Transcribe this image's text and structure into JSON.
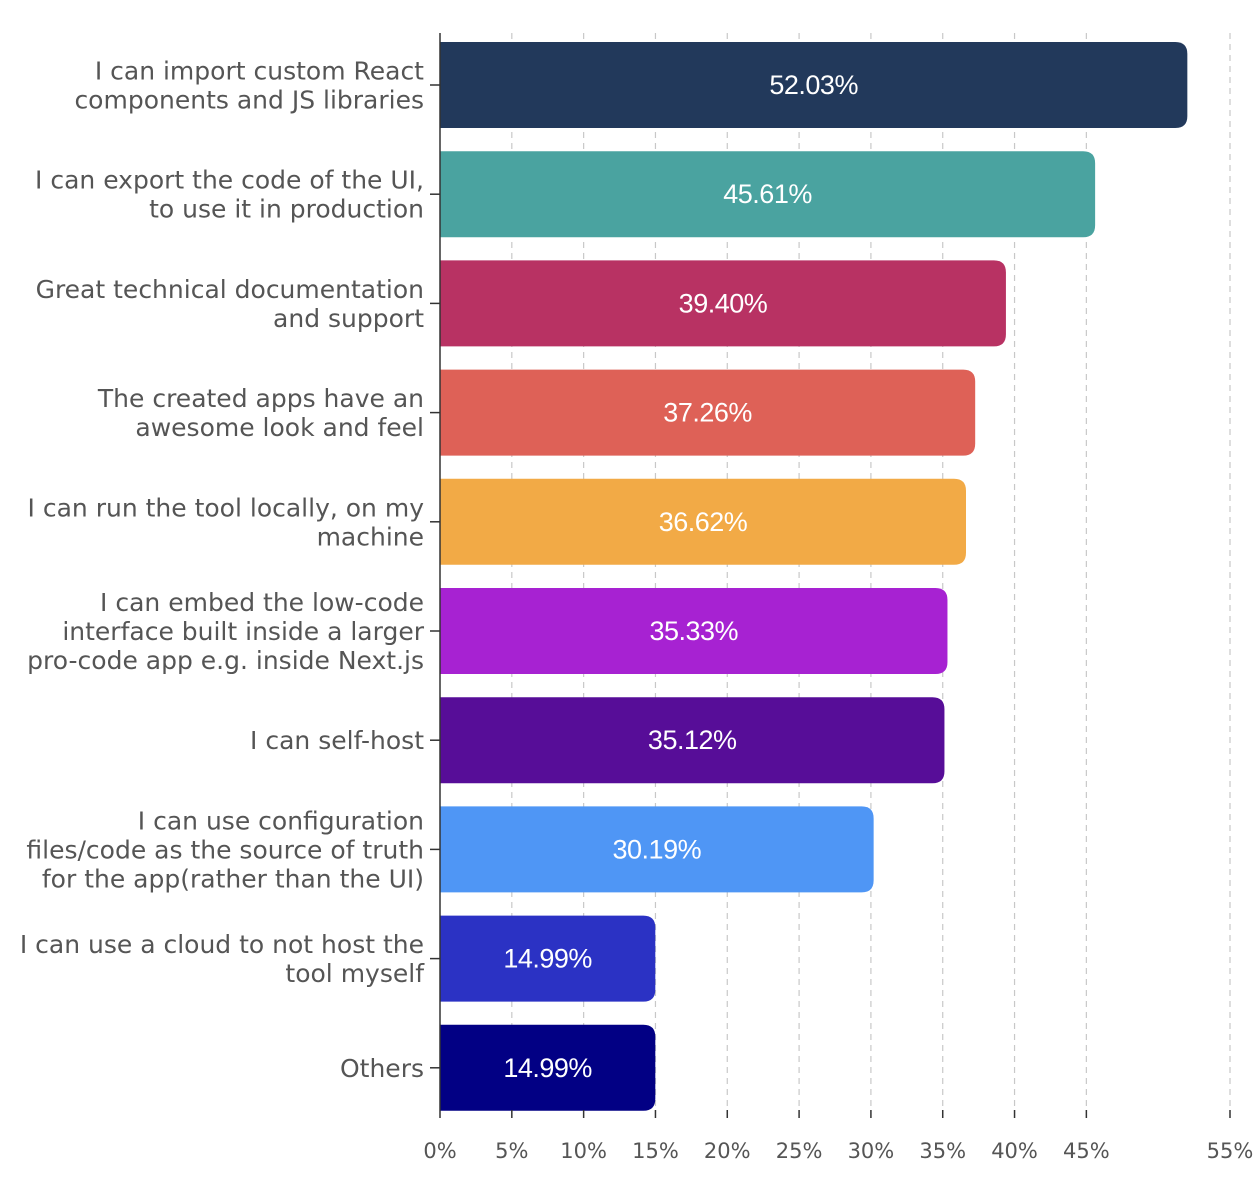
{
  "chart_data": {
    "type": "bar",
    "orientation": "horizontal",
    "categories": [
      [
        "I can import custom React",
        "components and JS libraries"
      ],
      [
        "I can export the code of the UI,",
        "to use it in production"
      ],
      [
        "Great technical documentation",
        "and support"
      ],
      [
        "The created apps have an",
        "awesome look and feel"
      ],
      [
        "I can run the tool locally, on my",
        "machine"
      ],
      [
        "I can embed the low-code",
        "interface built inside a larger",
        "pro-code app e.g. inside Next.js"
      ],
      [
        "I can self-host"
      ],
      [
        "I can use configuration",
        "files/code as the source of truth",
        "for the app(rather than the UI)"
      ],
      [
        "I can use a cloud to not host the",
        "tool myself"
      ],
      [
        "Others"
      ]
    ],
    "values": [
      52.03,
      45.61,
      39.4,
      37.26,
      36.62,
      35.33,
      35.12,
      30.19,
      14.99,
      14.99
    ],
    "value_labels": [
      "52.03%",
      "45.61%",
      "39.40%",
      "37.26%",
      "36.62%",
      "35.33%",
      "35.12%",
      "30.19%",
      "14.99%",
      "14.99%"
    ],
    "colors": [
      "#22395b",
      "#4aa3a0",
      "#b83263",
      "#de6157",
      "#f2aa46",
      "#a722d2",
      "#570d98",
      "#4f96f5",
      "#2b32c4",
      "#020084"
    ],
    "xticks": [
      0,
      5,
      10,
      15,
      20,
      25,
      30,
      35,
      40,
      45,
      55
    ],
    "xtick_labels": [
      "0%",
      "5%",
      "10%",
      "15%",
      "20%",
      "25%",
      "30%",
      "35%",
      "40%",
      "45%",
      "55%"
    ],
    "xlim": [
      0,
      55
    ],
    "grid": true,
    "title": "",
    "xlabel": "",
    "ylabel": ""
  }
}
